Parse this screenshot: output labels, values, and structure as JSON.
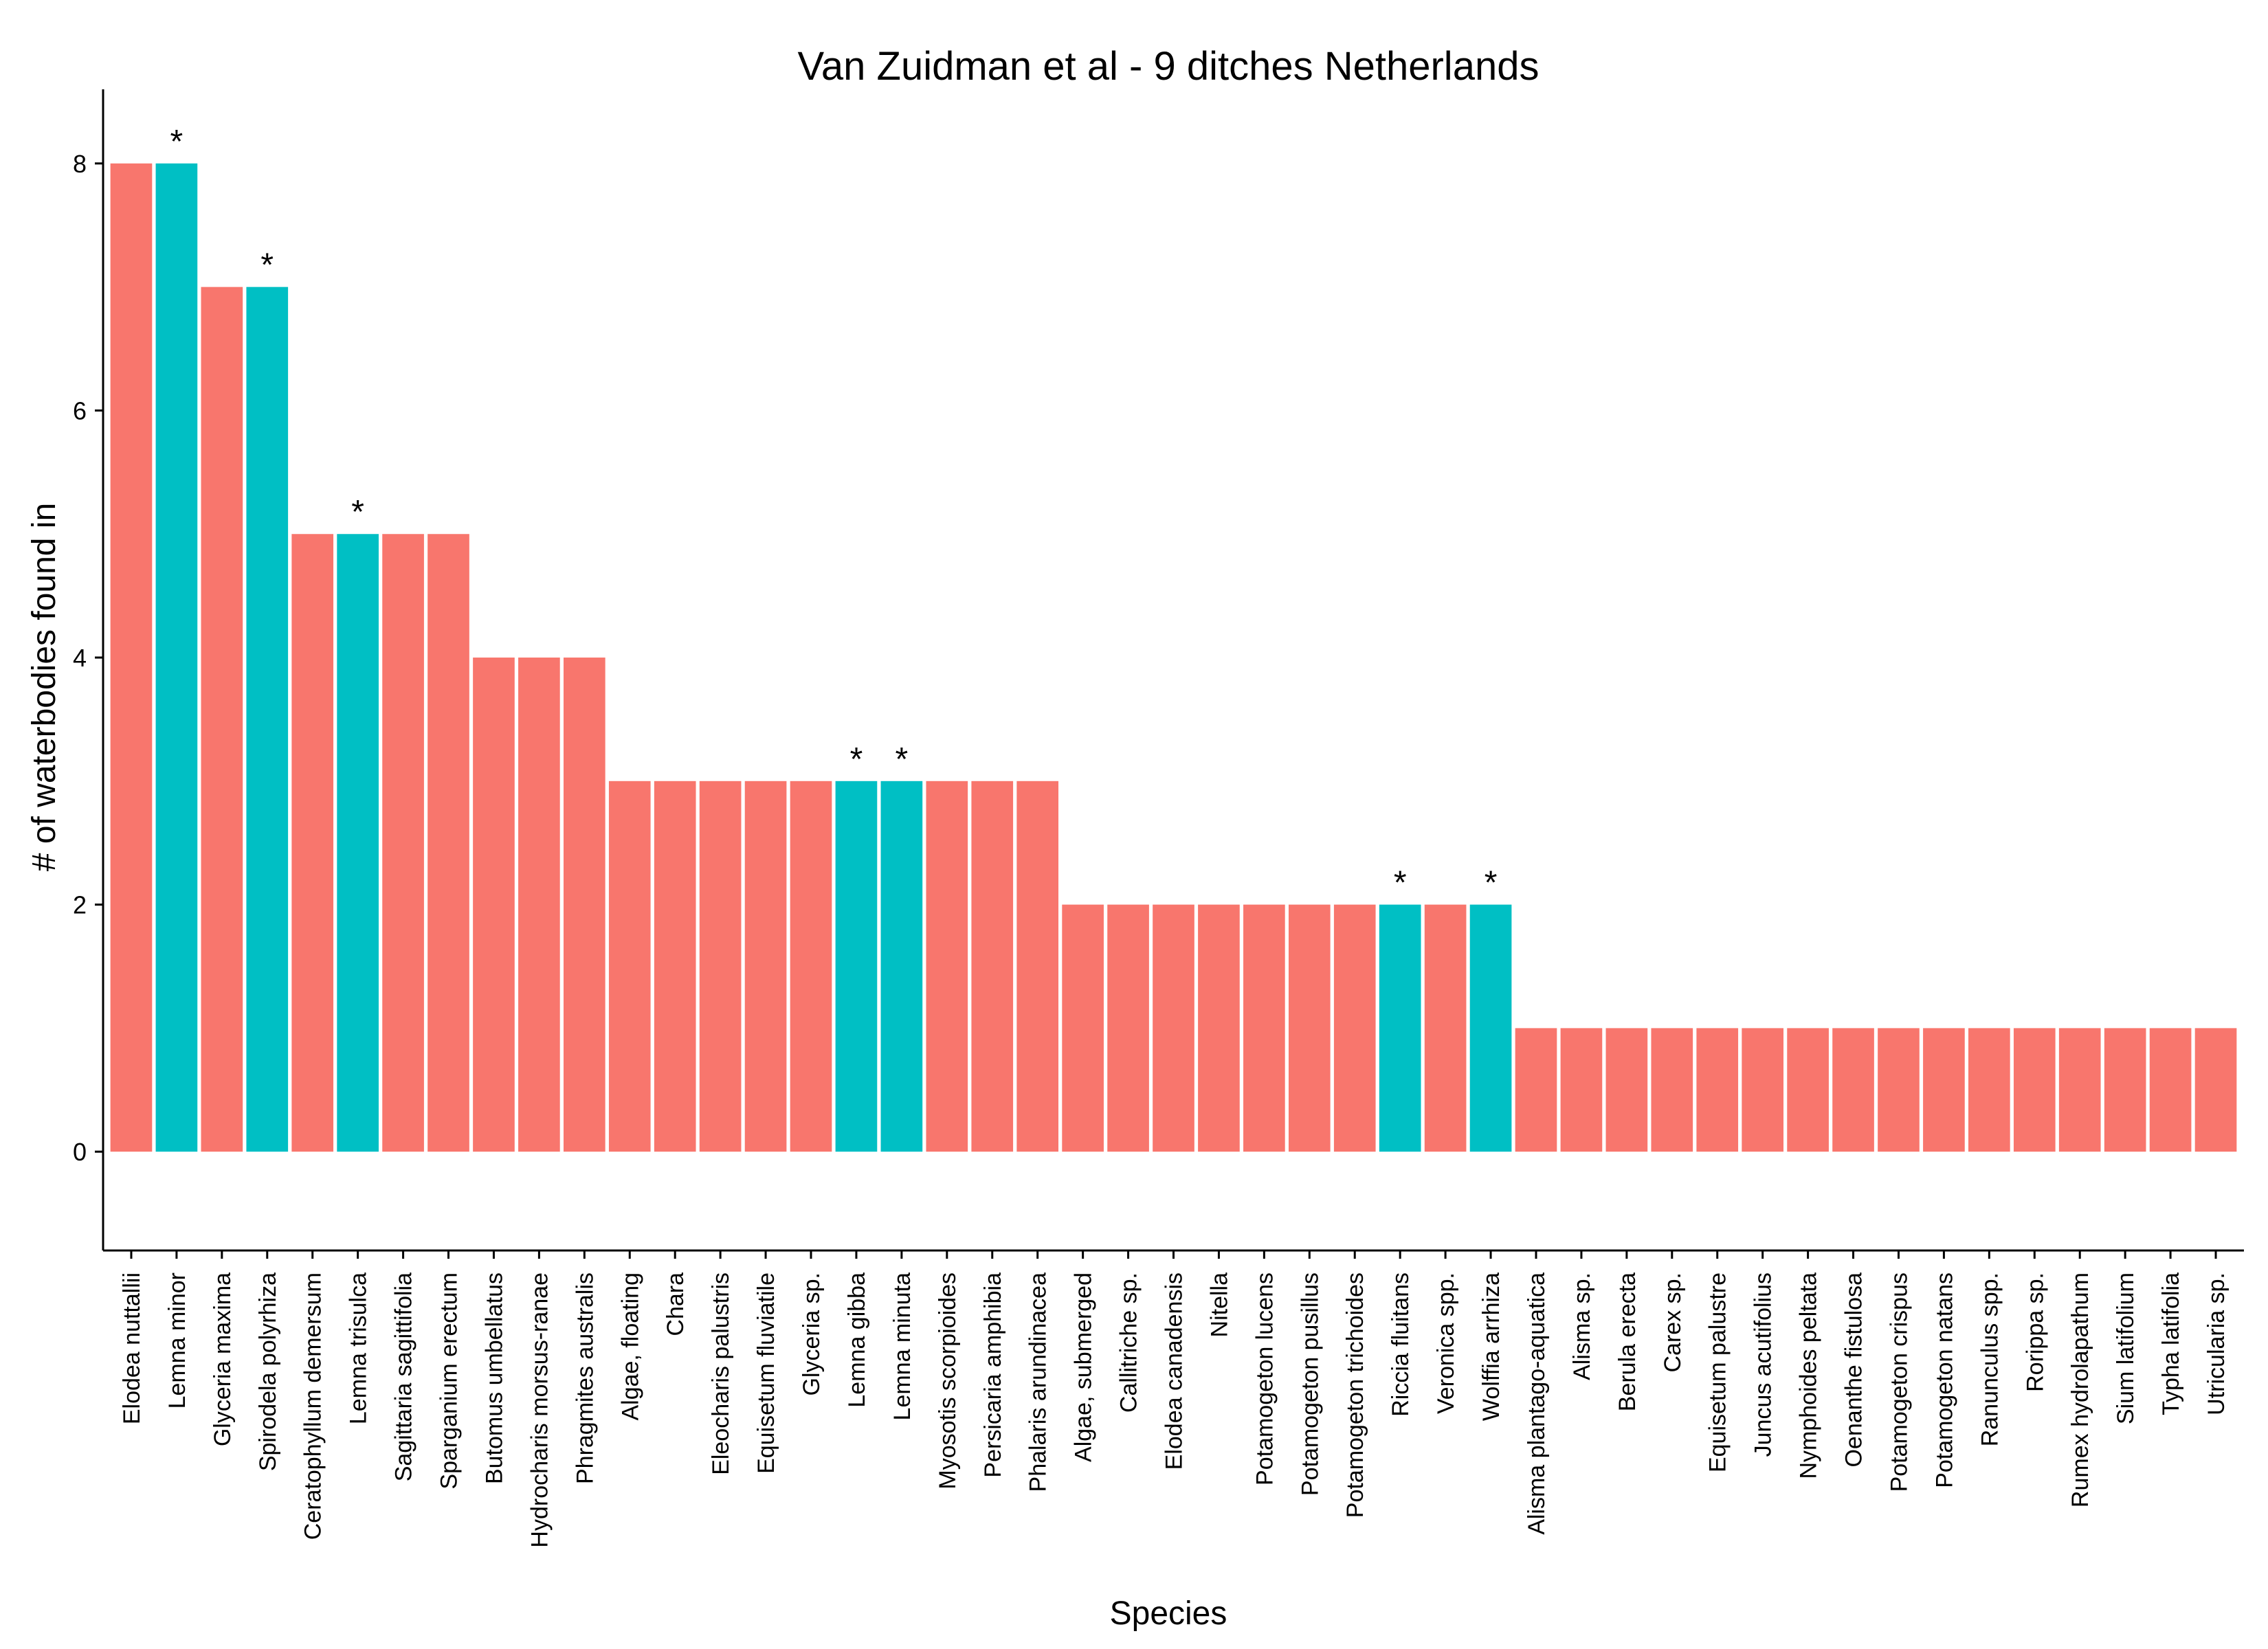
{
  "chart_data": {
    "type": "bar",
    "title": "Van Zuidman et al - 9 ditches Netherlands",
    "xlabel": "Species",
    "ylabel": "# of waterbodies found in",
    "ylim": [
      -0.8,
      8.6
    ],
    "yticks": [
      0,
      2,
      4,
      6,
      8
    ],
    "grid": false,
    "legend": "none",
    "marker_label": "*",
    "colors": {
      "default": "#F8766D",
      "marked": "#00BFC4"
    },
    "categories": [
      "Elodea nuttallii",
      "Lemna minor",
      "Glyceria maxima",
      "Spirodela polyrhiza",
      "Ceratophyllum demersum",
      "Lemna trisulca",
      "Sagittaria sagittifolia",
      "Sparganium erectum",
      "Butomus umbellatus",
      "Hydrocharis morsus-ranae",
      "Phragmites australis",
      "Algae, floating",
      "Chara",
      "Eleocharis palustris",
      "Equisetum fluviatile",
      "Glyceria sp.",
      "Lemna gibba",
      "Lemna minuta",
      "Myosotis scorpioides",
      "Persicaria amphibia",
      "Phalaris arundinacea",
      "Algae, submerged",
      "Callitriche sp.",
      "Elodea canadensis",
      "Nitella",
      "Potamogeton lucens",
      "Potamogeton pusillus",
      "Potamogeton trichoides",
      "Riccia fluitans",
      "Veronica spp.",
      "Wolffia arrhiza",
      "Alisma plantago-aquatica",
      "Alisma sp.",
      "Berula erecta",
      "Carex sp.",
      "Equisetum palustre",
      "Juncus acutifolius",
      "Nymphoides peltata",
      "Oenanthe fistulosa",
      "Potamogeton crispus",
      "Potamogeton natans",
      "Ranunculus spp.",
      "Rorippa sp.",
      "Rumex hydrolapathum",
      "Sium latifolium",
      "Typha latifolia",
      "Utricularia sp."
    ],
    "values": [
      8,
      8,
      7,
      7,
      5,
      5,
      5,
      5,
      4,
      4,
      4,
      3,
      3,
      3,
      3,
      3,
      3,
      3,
      3,
      3,
      3,
      2,
      2,
      2,
      2,
      2,
      2,
      2,
      2,
      2,
      2,
      1,
      1,
      1,
      1,
      1,
      1,
      1,
      1,
      1,
      1,
      1,
      1,
      1,
      1,
      1,
      1
    ],
    "marked": [
      false,
      true,
      false,
      true,
      false,
      true,
      false,
      false,
      false,
      false,
      false,
      false,
      false,
      false,
      false,
      false,
      true,
      true,
      false,
      false,
      false,
      false,
      false,
      false,
      false,
      false,
      false,
      false,
      true,
      false,
      true,
      false,
      false,
      false,
      false,
      false,
      false,
      false,
      false,
      false,
      false,
      false,
      false,
      false,
      false,
      false,
      false
    ]
  }
}
